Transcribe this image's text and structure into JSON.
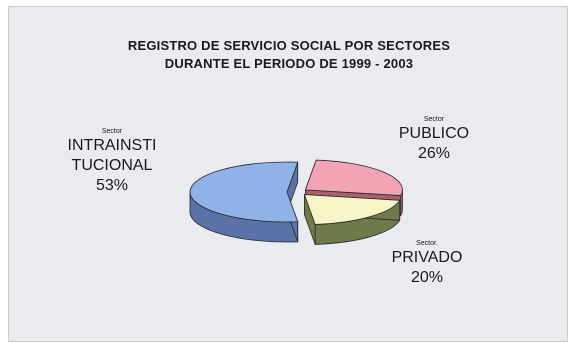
{
  "chart_data": {
    "type": "pie",
    "title_lines": [
      "REGISTRO DE SERVICIO SOCIAL POR SECTORES",
      "DURANTE EL PERIODO DE 1999 - 2003"
    ],
    "slices": [
      {
        "sector_text": "Sector",
        "name_lines": [
          "INTRAINSTI",
          "TUCIONAL"
        ],
        "percent_label": "53%",
        "value": 53,
        "color": "#8fb3e8",
        "side_color": "#5a72a8"
      },
      {
        "sector_text": "Sector",
        "name_lines": [
          "PUBLICO"
        ],
        "percent_label": "26%",
        "value": 26,
        "color": "#f2a3b5",
        "side_color": "#a8606f"
      },
      {
        "sector_text": "Sector.",
        "name_lines": [
          "PRIVADO"
        ],
        "percent_label": "20%",
        "value": 20,
        "color": "#f7f4c8",
        "side_color": "#6f7a4a"
      }
    ]
  }
}
